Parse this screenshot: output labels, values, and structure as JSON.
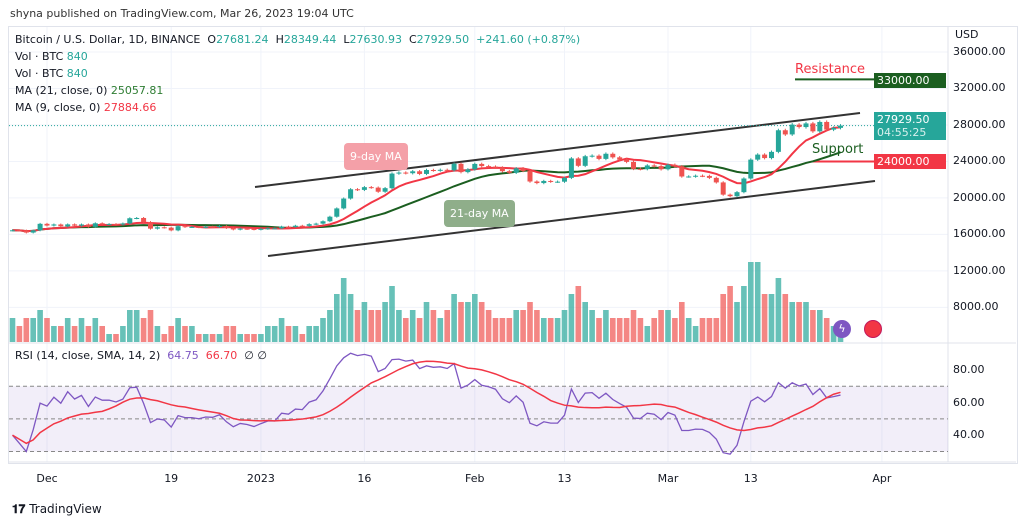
{
  "publisher": "shyna published on TradingView.com, Mar 26, 2023 19:04 UTC",
  "legend": {
    "symbol": "Bitcoin / U.S. Dollar, 1D, BINANCE",
    "o_label": "O",
    "o": "27681.24",
    "h_label": "H",
    "h": "28349.44",
    "l_label": "L",
    "l": "27630.93",
    "c_label": "C",
    "c": "27929.50",
    "change": "+241.60 (+0.87%)",
    "vol1_label": "Vol · BTC",
    "vol1": "840",
    "vol2_label": "Vol · BTC",
    "vol2": "840",
    "ma21_label": "MA (21, close, 0)",
    "ma21": "25057.81",
    "ma9_label": "MA (9, close, 0)",
    "ma9": "27884.66"
  },
  "rsi_legend": {
    "label": "RSI (14, close, SMA, 14, 2)",
    "rsi": "64.75",
    "sma": "66.70",
    "extra1": "∅",
    "extra2": "∅"
  },
  "price_axis": {
    "currency": "USD",
    "ticks": [
      "36000.00",
      "32000.00",
      "28000.00",
      "24000.00",
      "20000.00",
      "16000.00",
      "12000.00",
      "8000.00"
    ]
  },
  "rsi_axis": {
    "ticks": [
      "80.00",
      "60.00",
      "40.00"
    ]
  },
  "time_axis": {
    "ticks": [
      "Dec",
      "19",
      "2023",
      "16",
      "Feb",
      "13",
      "Mar",
      "13",
      "Apr"
    ]
  },
  "badges": {
    "resistance_value": "33000.00",
    "last_price": "27929.50",
    "countdown": "04:55:25",
    "support_value": "24000.00"
  },
  "annotations": {
    "resistance": "Resistance",
    "support": "Support",
    "ma9": "9-day MA",
    "ma21": "21-day MA"
  },
  "brand": "TradingView",
  "colors": {
    "up": "#26a69a",
    "down": "#ef5350",
    "ma9": "#f23645",
    "ma21": "#1b5e20",
    "rsi": "#7e57c2",
    "rsi_sma": "#f23645",
    "resistance": "#1b5e20",
    "support": "#f23645"
  },
  "chart_data": {
    "type": "candlestick",
    "start_date": "2022-11-26",
    "end_date": "2023-03-26",
    "interval": "1D",
    "ylim": [
      6000,
      37000
    ],
    "closes": [
      16450,
      16430,
      16200,
      16440,
      17160,
      16970,
      17090,
      16880,
      17100,
      16960,
      17090,
      16830,
      17220,
      17130,
      17130,
      17080,
      17200,
      17770,
      17800,
      17350,
      16630,
      16780,
      16740,
      16440,
      16900,
      16820,
      16820,
      16780,
      16840,
      16830,
      16910,
      16700,
      16540,
      16630,
      16600,
      16540,
      16610,
      16670,
      16670,
      16850,
      16830,
      16950,
      16940,
      17120,
      17180,
      17440,
      17940,
      18850,
      19930,
      20950,
      20880,
      21180,
      21130,
      20680,
      21070,
      22670,
      22780,
      22710,
      22920,
      22630,
      23060,
      23010,
      23080,
      23030,
      23740,
      22830,
      23130,
      23730,
      23490,
      23430,
      23330,
      22930,
      22760,
      23240,
      22960,
      21800,
      21630,
      21860,
      21780,
      21780,
      22200,
      24330,
      23520,
      24570,
      24630,
      24280,
      24840,
      24450,
      24190,
      23950,
      23190,
      23160,
      23560,
      23490,
      23140,
      23630,
      23470,
      22350,
      22350,
      22430,
      22410,
      22200,
      21700,
      20360,
      20190,
      20630,
      22130,
      24200,
      24750,
      24370,
      25050,
      27420,
      26960,
      28040,
      27770,
      28170,
      27300,
      28330,
      27490,
      27681,
      27929.5
    ],
    "volumes": [
      3,
      2,
      3,
      3,
      4,
      3,
      2,
      2,
      3,
      2,
      3,
      2,
      3,
      2,
      1,
      1,
      2,
      4,
      4,
      3,
      4,
      2,
      1,
      2,
      3,
      2,
      2,
      1,
      1,
      1,
      1,
      2,
      2,
      1,
      1,
      1,
      1,
      2,
      2,
      3,
      2,
      2,
      1,
      2,
      2,
      3,
      4,
      6,
      8,
      6,
      4,
      5,
      4,
      4,
      5,
      7,
      4,
      3,
      4,
      3,
      5,
      4,
      3,
      4,
      6,
      5,
      5,
      6,
      5,
      4,
      3,
      3,
      3,
      4,
      4,
      5,
      4,
      3,
      3,
      3,
      4,
      6,
      7,
      5,
      4,
      3,
      4,
      3,
      3,
      3,
      4,
      3,
      2,
      3,
      4,
      4,
      3,
      5,
      3,
      2,
      3,
      3,
      3,
      6,
      7,
      5,
      7,
      10,
      10,
      6,
      6,
      8,
      6,
      5,
      5,
      5,
      4,
      4,
      3,
      2,
      1
    ],
    "resistance": 33000,
    "support": 24000,
    "rsi_levels": [
      30,
      50,
      70
    ],
    "rsi_ylim": [
      22,
      95
    ]
  }
}
